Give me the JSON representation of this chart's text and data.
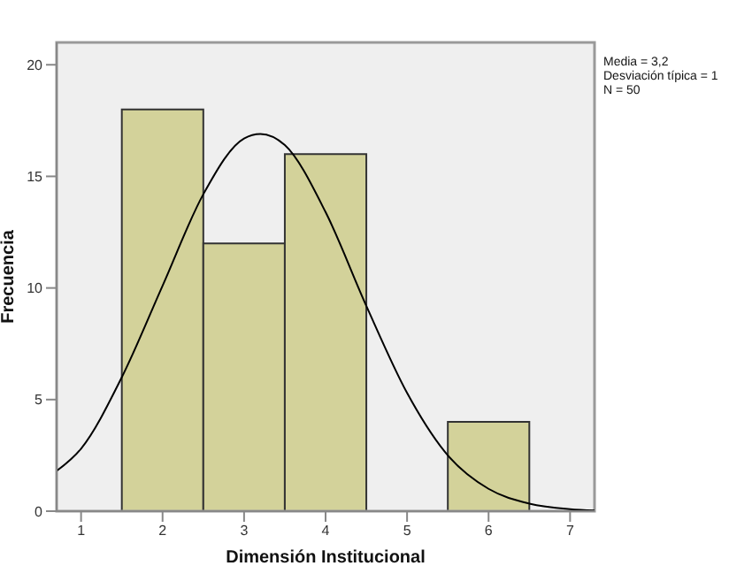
{
  "chart_data": {
    "type": "histogram",
    "xlabel": "Dimensión Institucional",
    "ylabel": "Frecuencia",
    "bins": [
      1.5,
      2.5,
      3.5,
      4.5,
      5.5,
      6.5
    ],
    "values": [
      18,
      12,
      16,
      0,
      4
    ],
    "color": "#d3d29a",
    "series": [
      {
        "type": "line",
        "color": "#000000",
        "x": [
          0.7,
          1,
          1.5,
          2,
          2.5,
          3,
          3.2,
          3.5,
          4,
          4.5,
          5,
          5.5,
          6,
          6.5,
          7,
          7.3
        ],
        "values": [
          1.8,
          2.8,
          6,
          10.1,
          14.2,
          16.7,
          16.9,
          16.4,
          13.4,
          9.2,
          5.3,
          2.5,
          1,
          0.34,
          0.09,
          0.03
        ]
      }
    ],
    "xlim": [
      0.7,
      7.3
    ],
    "xticks": [
      1,
      2,
      3,
      4,
      5,
      6,
      7
    ],
    "ylim": [
      0,
      21
    ],
    "yticks": [
      0,
      5,
      10,
      15,
      20
    ],
    "grid": false,
    "annotations": [
      "Media = 3,2",
      "Desviación típica = 1",
      "N = 50"
    ]
  }
}
